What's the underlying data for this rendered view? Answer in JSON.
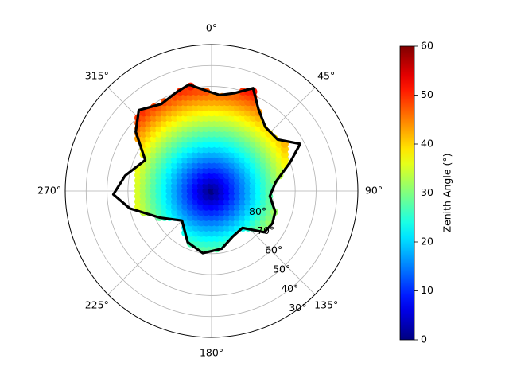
{
  "chart_data": {
    "type": "scatter",
    "projection": "polar",
    "title": "",
    "theta_zero": "north",
    "theta_direction": "clockwise",
    "angle_tick_labels": [
      "0°",
      "45°",
      "90°",
      "135°",
      "180°",
      "225°",
      "270°",
      "315°"
    ],
    "radial_axis": "elevation",
    "radial_range": [
      90,
      20
    ],
    "radial_tick_labels": [
      "30°",
      "40°",
      "50°",
      "60°",
      "70°",
      "80°"
    ],
    "radial_tick_values": [
      30,
      40,
      50,
      60,
      70,
      80
    ],
    "grid": true,
    "color_field": "zenith_angle",
    "colormap": "jet",
    "clim": [
      0,
      60
    ],
    "colorbar": {
      "label": "Zenith Angle (°)",
      "ticks": [
        0,
        10,
        20,
        30,
        40,
        50,
        60
      ],
      "tick_labels": [
        "0",
        "10",
        "20",
        "30",
        "40",
        "50",
        "60"
      ],
      "position": "right"
    },
    "boundary": {
      "description": "field-of-view outline (black)",
      "color": "#000000",
      "points": [
        {
          "az": 348,
          "el": 38
        },
        {
          "az": 357,
          "el": 42
        },
        {
          "az": 5,
          "el": 44
        },
        {
          "az": 13,
          "el": 42
        },
        {
          "az": 22,
          "el": 37
        },
        {
          "az": 30,
          "el": 45
        },
        {
          "az": 40,
          "el": 50
        },
        {
          "az": 52,
          "el": 50
        },
        {
          "az": 62,
          "el": 42
        },
        {
          "az": 70,
          "el": 50
        },
        {
          "az": 82,
          "el": 59
        },
        {
          "az": 95,
          "el": 62
        },
        {
          "az": 108,
          "el": 58
        },
        {
          "az": 118,
          "el": 57
        },
        {
          "az": 128,
          "el": 58
        },
        {
          "az": 140,
          "el": 67
        },
        {
          "az": 155,
          "el": 66
        },
        {
          "az": 170,
          "el": 62
        },
        {
          "az": 188,
          "el": 60
        },
        {
          "az": 205,
          "el": 63
        },
        {
          "az": 225,
          "el": 70
        },
        {
          "az": 243,
          "el": 62
        },
        {
          "az": 258,
          "el": 50
        },
        {
          "az": 268,
          "el": 43
        },
        {
          "az": 280,
          "el": 48
        },
        {
          "az": 295,
          "el": 55
        },
        {
          "az": 308,
          "el": 44
        },
        {
          "az": 318,
          "el": 38
        },
        {
          "az": 330,
          "el": 42
        },
        {
          "az": 340,
          "el": 40
        },
        {
          "az": 348,
          "el": 38
        }
      ]
    },
    "scan_grid": {
      "description": "regular grid of sample points; color = zenith angle",
      "center_az": 0,
      "center_el": 90,
      "spacing_deg": 2.5,
      "columns": [
        -14,
        14
      ],
      "rows_north": 22,
      "rows_south": -12
    }
  }
}
